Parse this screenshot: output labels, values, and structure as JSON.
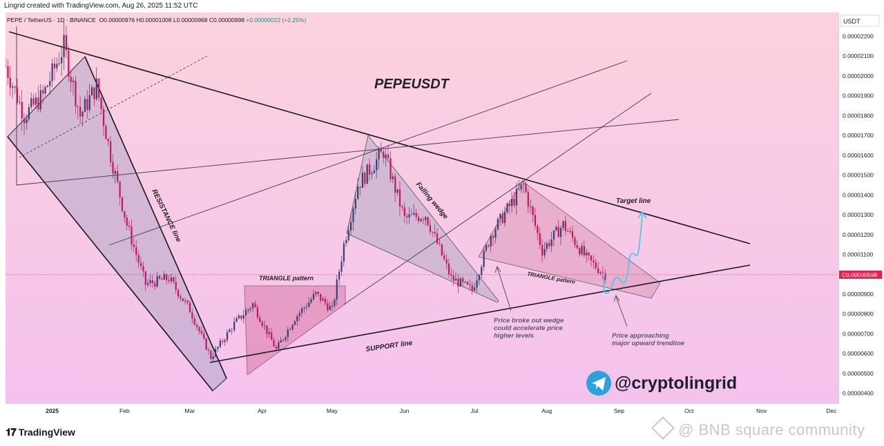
{
  "header": {
    "created_by": "Lingrid created with TradingView.com, Aug 26, 2025 11:52 UTC"
  },
  "legend": {
    "symbol": "PEPE / TetherUS · 1D · BINANCE",
    "open": "O0.00000976",
    "high": "H0.00001008",
    "low": "L0.00000968",
    "close": "C0.00000998",
    "change": "+0.00000022 (+2.25%)"
  },
  "price_scale": {
    "currency": "USDT"
  },
  "footer": {
    "logo_text": "TradingView",
    "watermark": "@ BNB square community"
  },
  "annotations": {
    "title": "PEPEUSDT",
    "resistance": "RESISTANCE line",
    "support": "SUPPORT line",
    "triangle1": "TRIANGLE pattern",
    "triangle2": "TRIANGLE pattern",
    "falling_wedge": "Falling wedge",
    "target": "Target line",
    "note1": [
      "Price broke out wedge",
      "could accelerate price",
      "higher levels"
    ],
    "note2": [
      "Price approaching",
      "major upward trendline"
    ],
    "handle": "@cryptolingrid"
  },
  "colors": {
    "bg_top": "#fbd2dd",
    "bg_bottom": "#f5c2ee",
    "up": "#3d3d6e",
    "down": "#c2185b",
    "current_price": "#e91e4f",
    "projection": "#3ec7e8",
    "telegram": "#2aa3db"
  },
  "chart_data": {
    "type": "candlestick",
    "symbol": "PEPE / TetherUS",
    "timeframe": "1D",
    "exchange": "BINANCE",
    "ohlc_last": {
      "open": 9.76e-06,
      "high": 1.008e-05,
      "low": 9.68e-06,
      "close": 9.98e-06,
      "change": 2.2e-07,
      "change_pct": 2.25
    },
    "current_price": 9.98e-06,
    "y_ticks": [
      4e-06,
      5e-06,
      6e-06,
      7e-06,
      8e-06,
      9e-06,
      1e-05,
      1.1e-05,
      1.2e-05,
      1.3e-05,
      1.4e-05,
      1.5e-05,
      1.6e-05,
      1.7e-05,
      1.8e-05,
      1.9e-05,
      2e-05,
      2.1e-05,
      2.2e-05
    ],
    "y_tick_labels": [
      "0.00000400",
      "0.00000500",
      "0.00000600",
      "0.00000700",
      "0.00000800",
      "0.00000900",
      "0.00001000",
      "0.00001100",
      "0.00001200",
      "0.00001300",
      "0.00001400",
      "0.00001500",
      "0.00001600",
      "0.00001700",
      "0.00001800",
      "0.00001900",
      "0.00002000",
      "0.00002100",
      "0.00002200"
    ],
    "x_ticks": [
      {
        "label": "2025",
        "date": "2025-01-01"
      },
      {
        "label": "Feb",
        "date": "2025-02-01"
      },
      {
        "label": "Mar",
        "date": "2025-03-01"
      },
      {
        "label": "Apr",
        "date": "2025-04-01"
      },
      {
        "label": "May",
        "date": "2025-05-01"
      },
      {
        "label": "Jun",
        "date": "2025-06-01"
      },
      {
        "label": "Jul",
        "date": "2025-07-01"
      },
      {
        "label": "Aug",
        "date": "2025-08-01"
      },
      {
        "label": "Sep",
        "date": "2025-09-01"
      },
      {
        "label": "Oct",
        "date": "2025-10-01"
      },
      {
        "label": "Nov",
        "date": "2025-11-01"
      },
      {
        "label": "Dec",
        "date": "2025-12-01"
      }
    ],
    "x_range": [
      "2024-12-12",
      "2025-12-04"
    ],
    "ylim": [
      3.5e-06,
      2.32e-05
    ],
    "price_path": [
      {
        "date": "2024-12-12",
        "price": 2.05e-05
      },
      {
        "date": "2024-12-20",
        "price": 1.8e-05
      },
      {
        "date": "2024-12-28",
        "price": 1.9e-05
      },
      {
        "date": "2025-01-06",
        "price": 2.15e-05
      },
      {
        "date": "2025-01-13",
        "price": 1.8e-05
      },
      {
        "date": "2025-01-20",
        "price": 1.95e-05
      },
      {
        "date": "2025-01-26",
        "price": 1.6e-05
      },
      {
        "date": "2025-02-02",
        "price": 1.25e-05
      },
      {
        "date": "2025-02-10",
        "price": 9.5e-06
      },
      {
        "date": "2025-02-20",
        "price": 9.8e-06
      },
      {
        "date": "2025-03-01",
        "price": 8.2e-06
      },
      {
        "date": "2025-03-10",
        "price": 5.8e-06
      },
      {
        "date": "2025-03-20",
        "price": 7.5e-06
      },
      {
        "date": "2025-03-28",
        "price": 8.5e-06
      },
      {
        "date": "2025-04-07",
        "price": 6.2e-06
      },
      {
        "date": "2025-04-15",
        "price": 7.8e-06
      },
      {
        "date": "2025-04-24",
        "price": 9e-06
      },
      {
        "date": "2025-05-01",
        "price": 8.2e-06
      },
      {
        "date": "2025-05-06",
        "price": 1.15e-05
      },
      {
        "date": "2025-05-12",
        "price": 1.45e-05
      },
      {
        "date": "2025-05-23",
        "price": 1.62e-05
      },
      {
        "date": "2025-06-01",
        "price": 1.28e-05
      },
      {
        "date": "2025-06-10",
        "price": 1.3e-05
      },
      {
        "date": "2025-06-21",
        "price": 9.8e-06
      },
      {
        "date": "2025-06-30",
        "price": 9.2e-06
      },
      {
        "date": "2025-07-08",
        "price": 1.2e-05
      },
      {
        "date": "2025-07-22",
        "price": 1.45e-05
      },
      {
        "date": "2025-07-30",
        "price": 1.12e-05
      },
      {
        "date": "2025-08-08",
        "price": 1.25e-05
      },
      {
        "date": "2025-08-18",
        "price": 1.08e-05
      },
      {
        "date": "2025-08-26",
        "price": 9.98e-06
      }
    ]
  }
}
